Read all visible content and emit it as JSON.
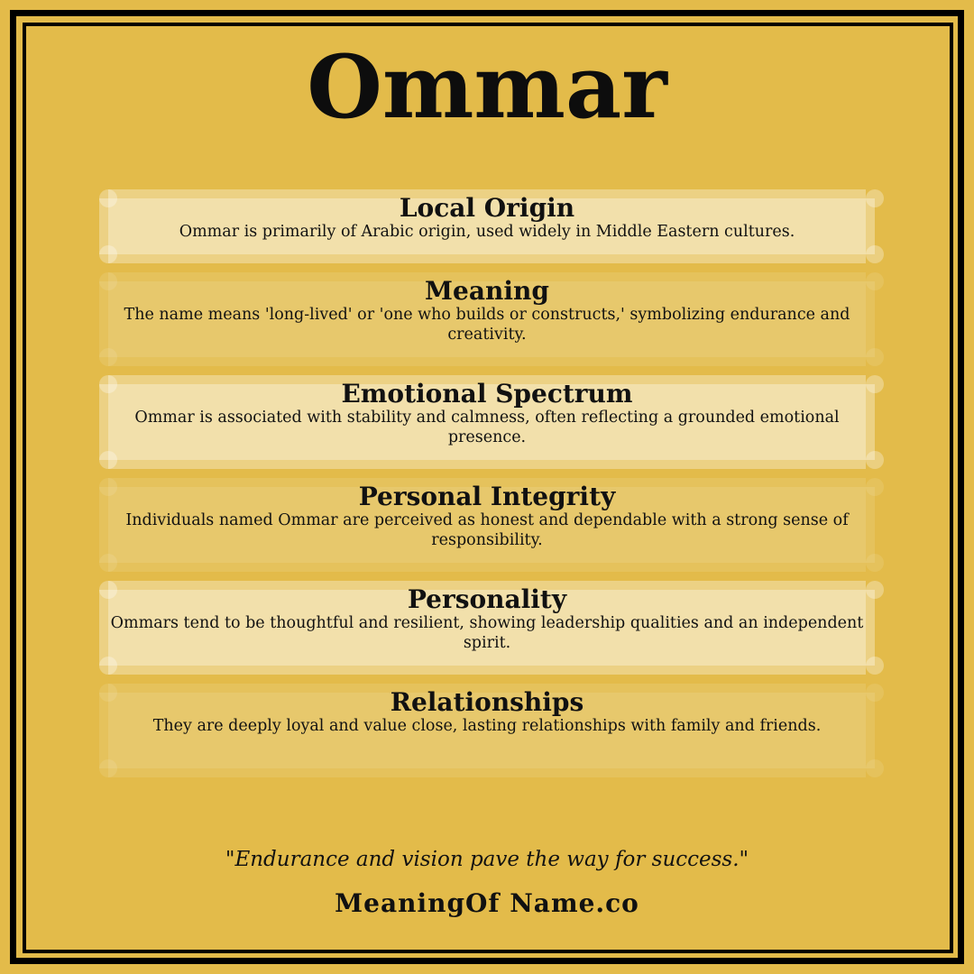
{
  "title": "Ommar",
  "sections": [
    {
      "title": "Local Origin",
      "text": "Ommar is primarily of Arabic origin, used widely in Middle Eastern cultures."
    },
    {
      "title": "Meaning",
      "text": "The name means 'long-lived' or 'one who builds or constructs,' symbolizing endurance and creativity."
    },
    {
      "title": "Emotional Spectrum",
      "text": "Ommar is associated with stability and calmness, often reflecting a grounded emotional presence."
    },
    {
      "title": "Personal Integrity",
      "text": "Individuals named Ommar are perceived as honest and dependable with a strong sense of responsibility."
    },
    {
      "title": "Personality",
      "text": "Ommars tend to be thoughtful and resilient, showing leadership qualities and an independent spirit."
    },
    {
      "title": "Relationships",
      "text": "They are deeply loyal and value close, lasting relationships with family and friends."
    }
  ],
  "quote": "\"Endurance and vision pave the way for success.\"",
  "site": "MeaningOf Name.co",
  "colors": {
    "background": "#e3bb4a",
    "border": "#000000"
  }
}
